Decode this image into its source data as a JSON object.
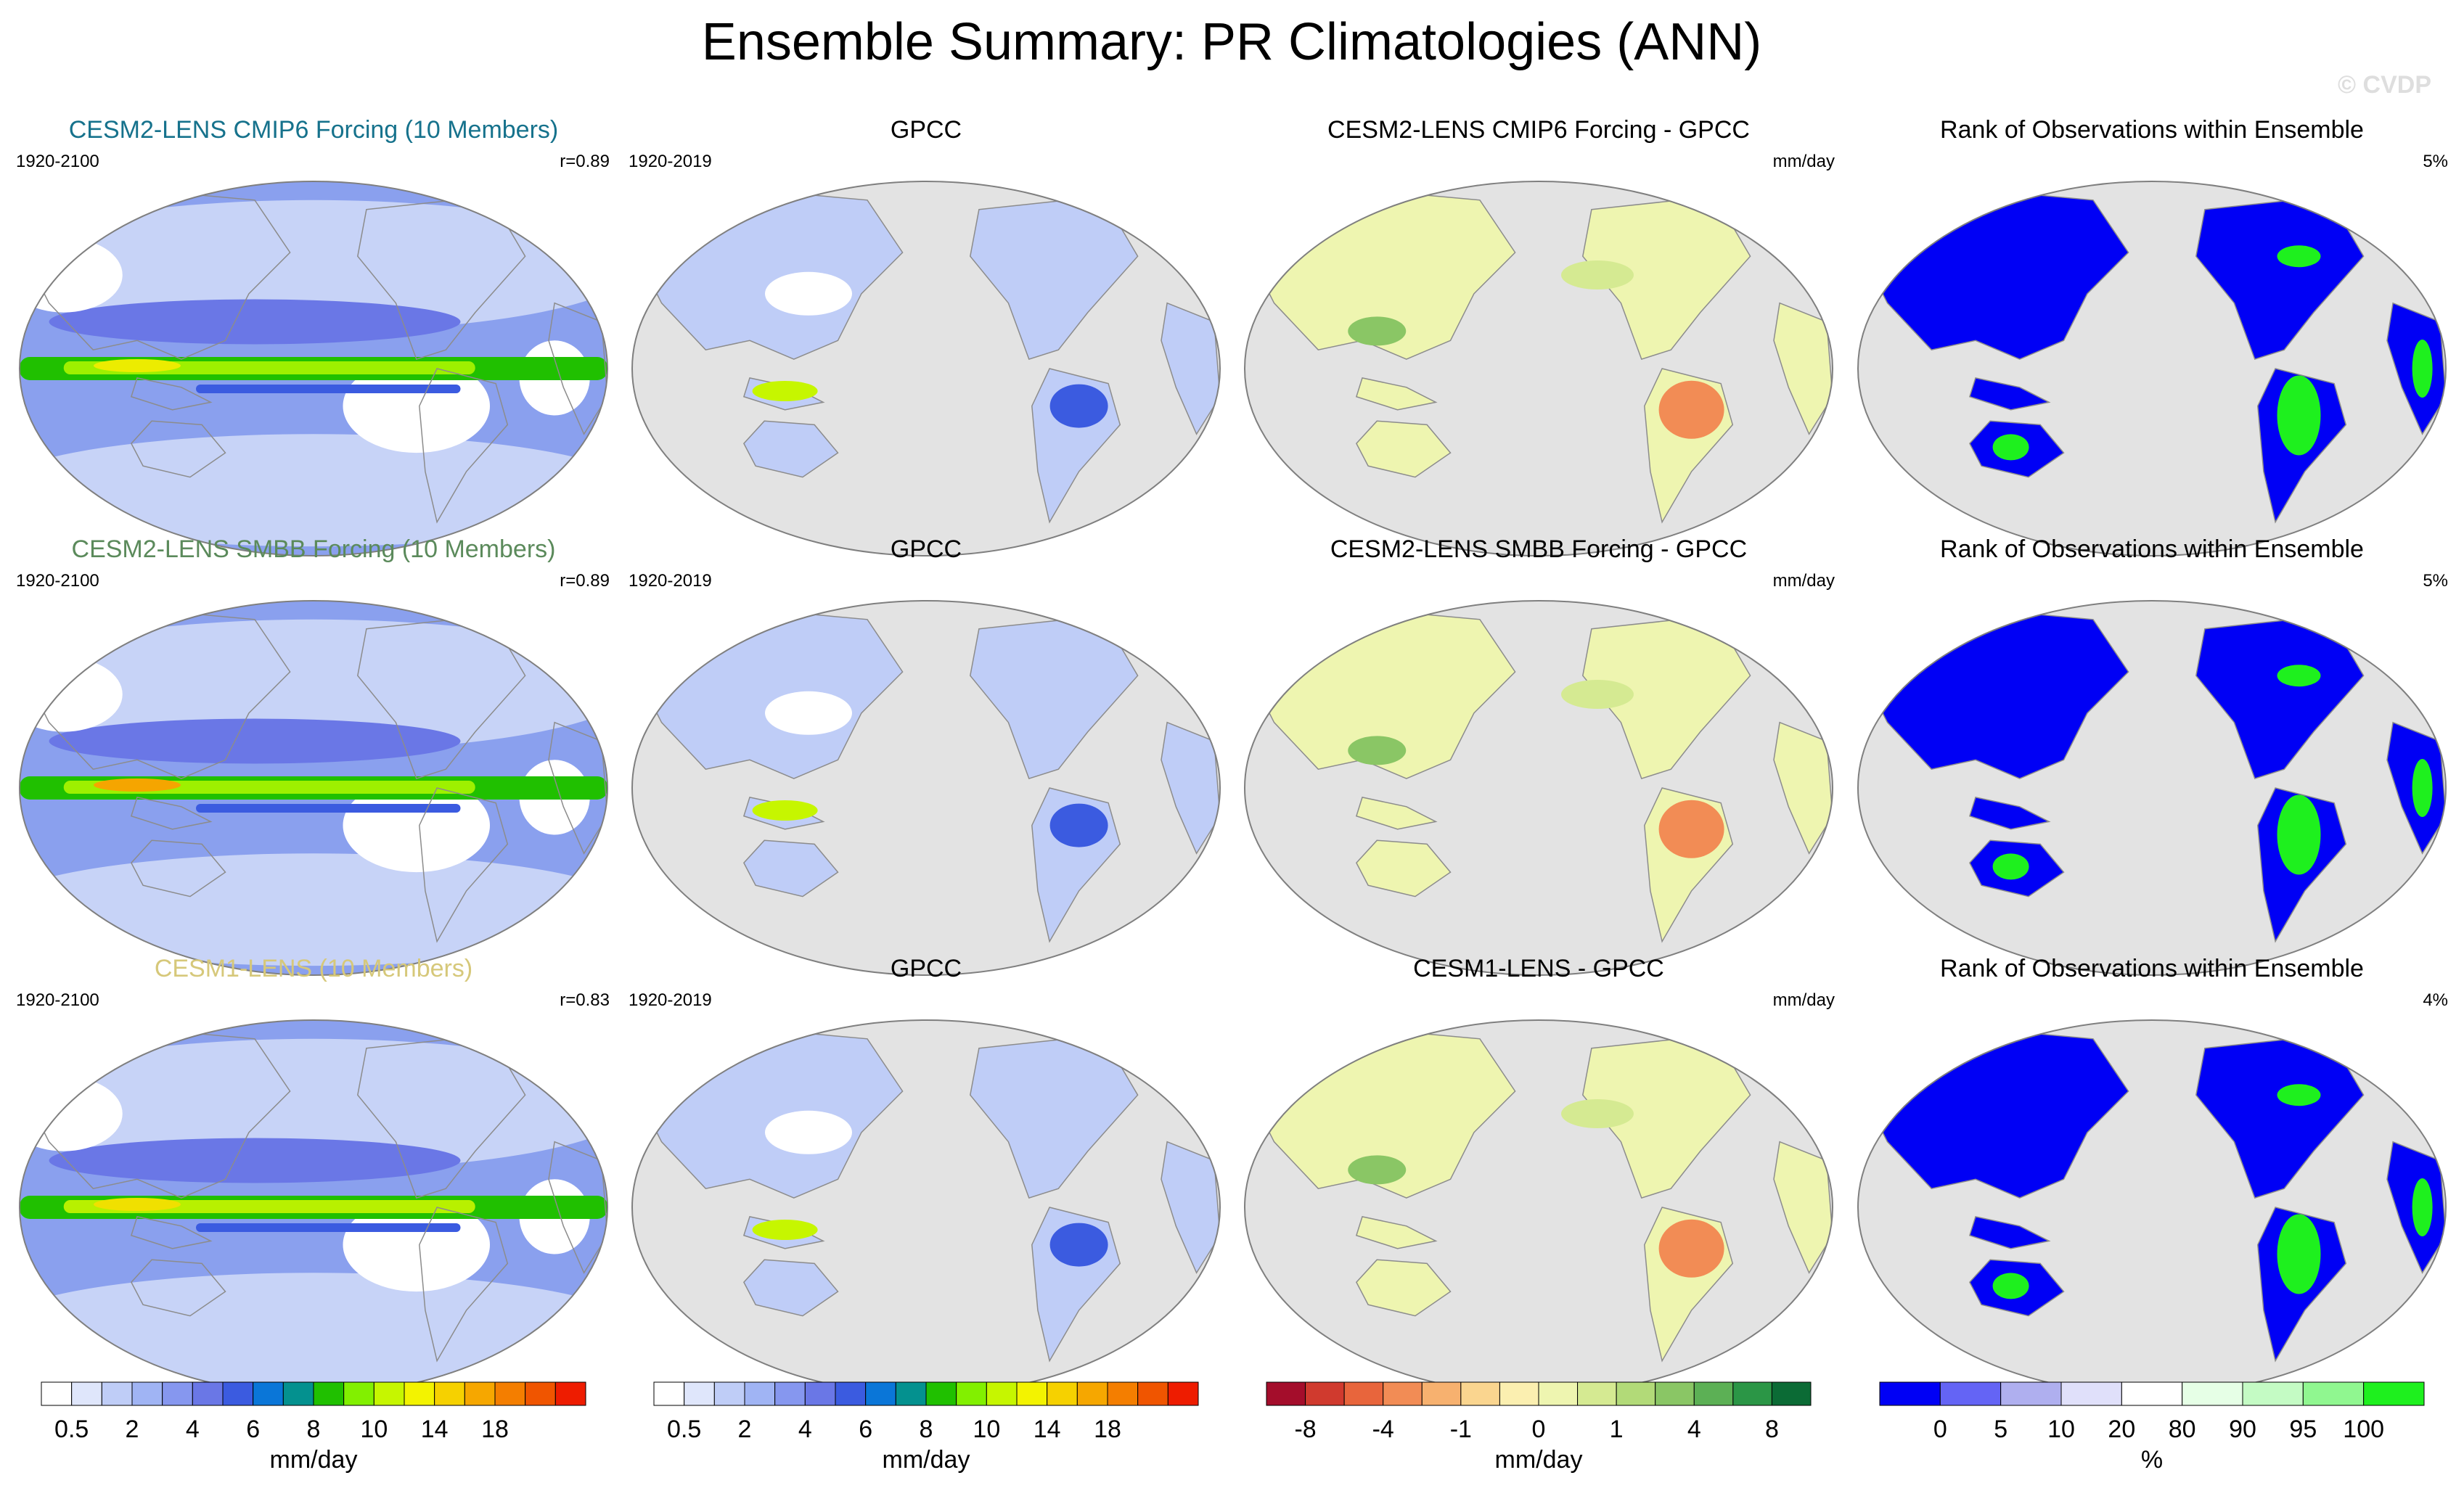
{
  "page": {
    "title": "Ensemble Summary: PR Climatologies (ANN)",
    "watermark": "© CVDP"
  },
  "colors": {
    "ocean_background": "#e3e3e3",
    "coastline": "#8c8c8c",
    "map_border": "#7f7f7f",
    "row_title_colors": [
      "#16728c",
      "#5b8a5b",
      "#d6c87a"
    ]
  },
  "chart_data": [
    {
      "type": "heatmap",
      "title": "CESM2-LENS CMIP6 Forcing (10 Members)",
      "period": "1920-2100",
      "stat": "r=0.89",
      "colorbar": "precip",
      "map_style": "model",
      "band_color": "#9ef000",
      "core_color": "#ecec00"
    },
    {
      "type": "heatmap",
      "title": "GPCC",
      "period": "1920-2019",
      "stat": "",
      "colorbar": "precip",
      "map_style": "obs"
    },
    {
      "type": "heatmap",
      "title": "CESM2-LENS CMIP6 Forcing - GPCC",
      "period": "",
      "stat": "mm/day",
      "colorbar": "diff",
      "map_style": "diff"
    },
    {
      "type": "heatmap",
      "title": "Rank of Observations within Ensemble",
      "period": "",
      "stat": "5%",
      "colorbar": "rank",
      "map_style": "rank"
    },
    {
      "type": "heatmap",
      "title": "CESM2-LENS SMBB Forcing (10 Members)",
      "period": "1920-2100",
      "stat": "r=0.89",
      "colorbar": "precip",
      "map_style": "model",
      "band_color": "#9ef000",
      "core_color": "#f5a500"
    },
    {
      "type": "heatmap",
      "title": "GPCC",
      "period": "1920-2019",
      "stat": "",
      "colorbar": "precip",
      "map_style": "obs"
    },
    {
      "type": "heatmap",
      "title": "CESM2-LENS SMBB Forcing - GPCC",
      "period": "",
      "stat": "mm/day",
      "colorbar": "diff",
      "map_style": "diff"
    },
    {
      "type": "heatmap",
      "title": "Rank of Observations within Ensemble",
      "period": "",
      "stat": "5%",
      "colorbar": "rank",
      "map_style": "rank"
    },
    {
      "type": "heatmap",
      "title": "CESM1-LENS (10 Members)",
      "period": "1920-2100",
      "stat": "r=0.83",
      "colorbar": "precip",
      "map_style": "model",
      "band_color": "#b8f000",
      "core_color": "#f0e000"
    },
    {
      "type": "heatmap",
      "title": "GPCC",
      "period": "1920-2019",
      "stat": "",
      "colorbar": "precip",
      "map_style": "obs"
    },
    {
      "type": "heatmap",
      "title": "CESM1-LENS - GPCC",
      "period": "",
      "stat": "mm/day",
      "colorbar": "diff",
      "map_style": "diff"
    },
    {
      "type": "heatmap",
      "title": "Rank of Observations within Ensemble",
      "period": "",
      "stat": "4%",
      "colorbar": "rank",
      "map_style": "rank"
    }
  ],
  "colorbars": {
    "precip": {
      "units": "mm/day",
      "colors": [
        "#ffffff",
        "#dfe6fb",
        "#bfcdf7",
        "#a0b4f4",
        "#8697ef",
        "#6a77e6",
        "#3b5be0",
        "#0a76d8",
        "#04918f",
        "#20c000",
        "#82f000",
        "#c6f600",
        "#f3f300",
        "#f6d100",
        "#f6a700",
        "#f47e00",
        "#f05500",
        "#ee1c00"
      ],
      "tick_labels": [
        "0.5",
        "2",
        "4",
        "6",
        "8",
        "10",
        "14",
        "18"
      ],
      "tick_edges": [
        1,
        3,
        5,
        7,
        9,
        11,
        13,
        15
      ]
    },
    "diff": {
      "units": "mm/day",
      "colors": [
        "#a40d2b",
        "#d03a2e",
        "#e8653c",
        "#f28c55",
        "#f7b16f",
        "#fad58f",
        "#fbefb0",
        "#eef5b0",
        "#d5ea92",
        "#b2da78",
        "#8ac665",
        "#5cb055",
        "#2b9646",
        "#0b6b35"
      ],
      "tick_labels": [
        "-8",
        "-4",
        "-1",
        "0",
        "1",
        "4",
        "8"
      ],
      "tick_edges": [
        1,
        3,
        5,
        7,
        9,
        11,
        13
      ]
    },
    "rank": {
      "units": "%",
      "colors": [
        "#0000f5",
        "#6464f5",
        "#afafef",
        "#e0e0fa",
        "#ffffff",
        "#e6ffe6",
        "#c4fbc4",
        "#90f790",
        "#1ef01e"
      ],
      "tick_labels": [
        "0",
        "5",
        "10",
        "20",
        "80",
        "90",
        "95",
        "100"
      ],
      "tick_edges": [
        1,
        2,
        3,
        4,
        5,
        6,
        7,
        8
      ]
    }
  }
}
